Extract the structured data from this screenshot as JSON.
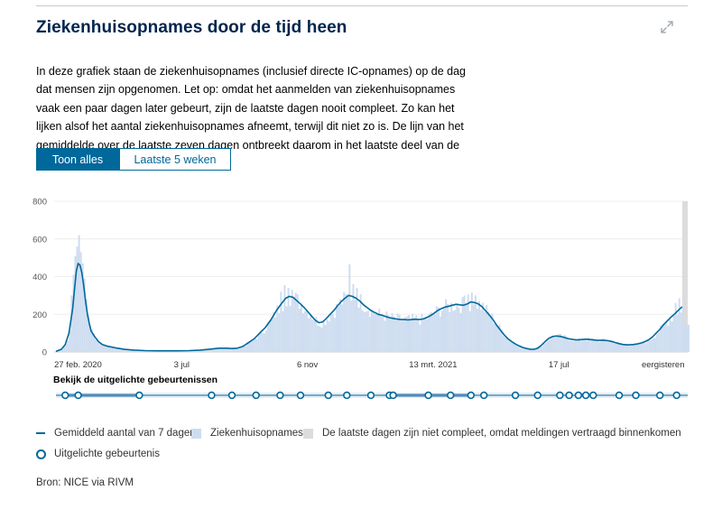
{
  "title": "Ziekenhuisopnames door de tijd heen",
  "intro": "In deze grafiek staan de ziekenhuisopnames (inclusief directe IC-opnames) op de dag dat mensen zijn opgenomen. Let op: omdat het aanmelden van ziekenhuisopnames vaak een paar dagen later gebeurt, zijn de laatste dagen nooit compleet. Zo kan het lijken alsof het aantal ziekenhuisopnames afneemt, terwijl dit niet zo is. De lijn van het gemiddelde over de laatste zeven dagen ontbreekt daarom in het laatste deel van de grafiek.",
  "tabs": [
    {
      "label": "Toon alles",
      "active": true
    },
    {
      "label": "Laatste 5 weken",
      "active": false
    }
  ],
  "highlight_title": "Bekijk de uitgelichte gebeurtenissen",
  "legend": {
    "average": "Gemiddeld aantal van 7 dagen",
    "admissions": "Ziekenhuisopnames",
    "incomplete": "De laatste dagen zijn niet compleet, omdat meldingen vertraagd binnenkomen",
    "events": "Uitgelichte gebeurtenis"
  },
  "source": "Bron: NICE via RIVM",
  "colors": {
    "title": "#01254d",
    "accent": "#01689b",
    "bar_fill": "#cddcf0",
    "incomplete": "#dcdcdc"
  },
  "icons": {
    "expand": "expand-icon"
  },
  "chart_data": {
    "type": "area",
    "ylim": [
      0,
      800
    ],
    "yticks": [
      0,
      200,
      400,
      600,
      800
    ],
    "x_start": "2020-02-27",
    "x_end": "eergisteren",
    "xtick_labels": [
      "27 feb. 2020",
      "3 jul",
      "6 nov",
      "13 mrt. 2021",
      "17 jul",
      "eergisteren"
    ],
    "series": [
      {
        "name": "Gemiddeld aantal van 7 dagen",
        "kind": "line"
      },
      {
        "name": "Ziekenhuisopnames",
        "kind": "bars"
      }
    ],
    "average_points": [
      [
        0,
        3
      ],
      [
        3,
        15
      ],
      [
        5,
        40
      ],
      [
        7,
        100
      ],
      [
        9,
        230
      ],
      [
        10,
        330
      ],
      [
        11,
        430
      ],
      [
        12,
        470
      ],
      [
        13,
        460
      ],
      [
        14,
        420
      ],
      [
        15,
        350
      ],
      [
        16,
        270
      ],
      [
        17,
        200
      ],
      [
        18,
        150
      ],
      [
        19,
        110
      ],
      [
        21,
        80
      ],
      [
        23,
        55
      ],
      [
        25,
        40
      ],
      [
        28,
        30
      ],
      [
        32,
        22
      ],
      [
        37,
        14
      ],
      [
        42,
        10
      ],
      [
        48,
        7
      ],
      [
        55,
        6
      ],
      [
        65,
        6
      ],
      [
        72,
        7
      ],
      [
        78,
        10
      ],
      [
        83,
        15
      ],
      [
        88,
        20
      ],
      [
        92,
        20
      ],
      [
        95,
        18
      ],
      [
        98,
        20
      ],
      [
        101,
        30
      ],
      [
        104,
        50
      ],
      [
        107,
        70
      ],
      [
        110,
        100
      ],
      [
        113,
        130
      ],
      [
        116,
        170
      ],
      [
        119,
        220
      ],
      [
        122,
        260
      ],
      [
        124,
        285
      ],
      [
        126,
        295
      ],
      [
        128,
        290
      ],
      [
        130,
        272
      ],
      [
        132,
        255
      ],
      [
        134,
        235
      ],
      [
        136,
        213
      ],
      [
        138,
        190
      ],
      [
        140,
        168
      ],
      [
        142,
        155
      ],
      [
        144,
        160
      ],
      [
        146,
        178
      ],
      [
        148,
        200
      ],
      [
        150,
        220
      ],
      [
        152,
        245
      ],
      [
        154,
        268
      ],
      [
        156,
        285
      ],
      [
        158,
        300
      ],
      [
        160,
        295
      ],
      [
        162,
        285
      ],
      [
        164,
        270
      ],
      [
        166,
        250
      ],
      [
        168,
        235
      ],
      [
        170,
        220
      ],
      [
        172,
        210
      ],
      [
        174,
        200
      ],
      [
        176,
        195
      ],
      [
        178,
        188
      ],
      [
        180,
        182
      ],
      [
        182,
        178
      ],
      [
        184,
        175
      ],
      [
        186,
        172
      ],
      [
        188,
        172
      ],
      [
        190,
        170
      ],
      [
        192,
        172
      ],
      [
        194,
        174
      ],
      [
        196,
        172
      ],
      [
        198,
        175
      ],
      [
        200,
        182
      ],
      [
        202,
        192
      ],
      [
        204,
        205
      ],
      [
        206,
        220
      ],
      [
        208,
        230
      ],
      [
        210,
        238
      ],
      [
        212,
        243
      ],
      [
        214,
        248
      ],
      [
        216,
        253
      ],
      [
        218,
        250
      ],
      [
        220,
        248
      ],
      [
        222,
        255
      ],
      [
        224,
        266
      ],
      [
        226,
        262
      ],
      [
        228,
        255
      ],
      [
        230,
        240
      ],
      [
        232,
        218
      ],
      [
        234,
        195
      ],
      [
        236,
        170
      ],
      [
        238,
        140
      ],
      [
        240,
        115
      ],
      [
        242,
        90
      ],
      [
        244,
        70
      ],
      [
        246,
        55
      ],
      [
        248,
        42
      ],
      [
        250,
        32
      ],
      [
        252,
        24
      ],
      [
        254,
        18
      ],
      [
        256,
        15
      ],
      [
        258,
        14
      ],
      [
        260,
        20
      ],
      [
        262,
        35
      ],
      [
        264,
        55
      ],
      [
        266,
        72
      ],
      [
        268,
        82
      ],
      [
        270,
        85
      ],
      [
        272,
        83
      ],
      [
        274,
        78
      ],
      [
        276,
        72
      ],
      [
        278,
        68
      ],
      [
        280,
        65
      ],
      [
        282,
        64
      ],
      [
        284,
        66
      ],
      [
        286,
        68
      ],
      [
        288,
        66
      ],
      [
        290,
        64
      ],
      [
        292,
        62
      ],
      [
        294,
        62
      ],
      [
        296,
        62
      ],
      [
        298,
        60
      ],
      [
        300,
        56
      ],
      [
        302,
        50
      ],
      [
        304,
        44
      ],
      [
        306,
        40
      ],
      [
        308,
        38
      ],
      [
        310,
        38
      ],
      [
        312,
        40
      ],
      [
        314,
        43
      ],
      [
        316,
        48
      ],
      [
        318,
        55
      ],
      [
        320,
        65
      ],
      [
        322,
        80
      ],
      [
        324,
        100
      ],
      [
        326,
        120
      ],
      [
        328,
        145
      ],
      [
        330,
        165
      ],
      [
        332,
        185
      ],
      [
        334,
        202
      ],
      [
        336,
        222
      ],
      [
        338,
        240
      ]
    ],
    "bar_spikes": [
      [
        10,
        510
      ],
      [
        11,
        560
      ],
      [
        12,
        620
      ],
      [
        13,
        530
      ],
      [
        9,
        410
      ],
      [
        8,
        300
      ],
      [
        14,
        470
      ],
      [
        15,
        390
      ],
      [
        121,
        320
      ],
      [
        123,
        355
      ],
      [
        125,
        340
      ],
      [
        127,
        330
      ],
      [
        158,
        465
      ],
      [
        160,
        360
      ],
      [
        162,
        340
      ],
      [
        222,
        305
      ],
      [
        224,
        315
      ],
      [
        220,
        300
      ],
      [
        226,
        300
      ],
      [
        336,
        285
      ],
      [
        334,
        260
      ]
    ],
    "incomplete_from": 338,
    "incomplete_to": 341,
    "x_max": 341,
    "event_markers": [
      5,
      12,
      45,
      84,
      95,
      108,
      121,
      132,
      147,
      157,
      170,
      180,
      182,
      201,
      213,
      224,
      231,
      248,
      260,
      272,
      277,
      282,
      286,
      290,
      304,
      313,
      326,
      335
    ]
  }
}
